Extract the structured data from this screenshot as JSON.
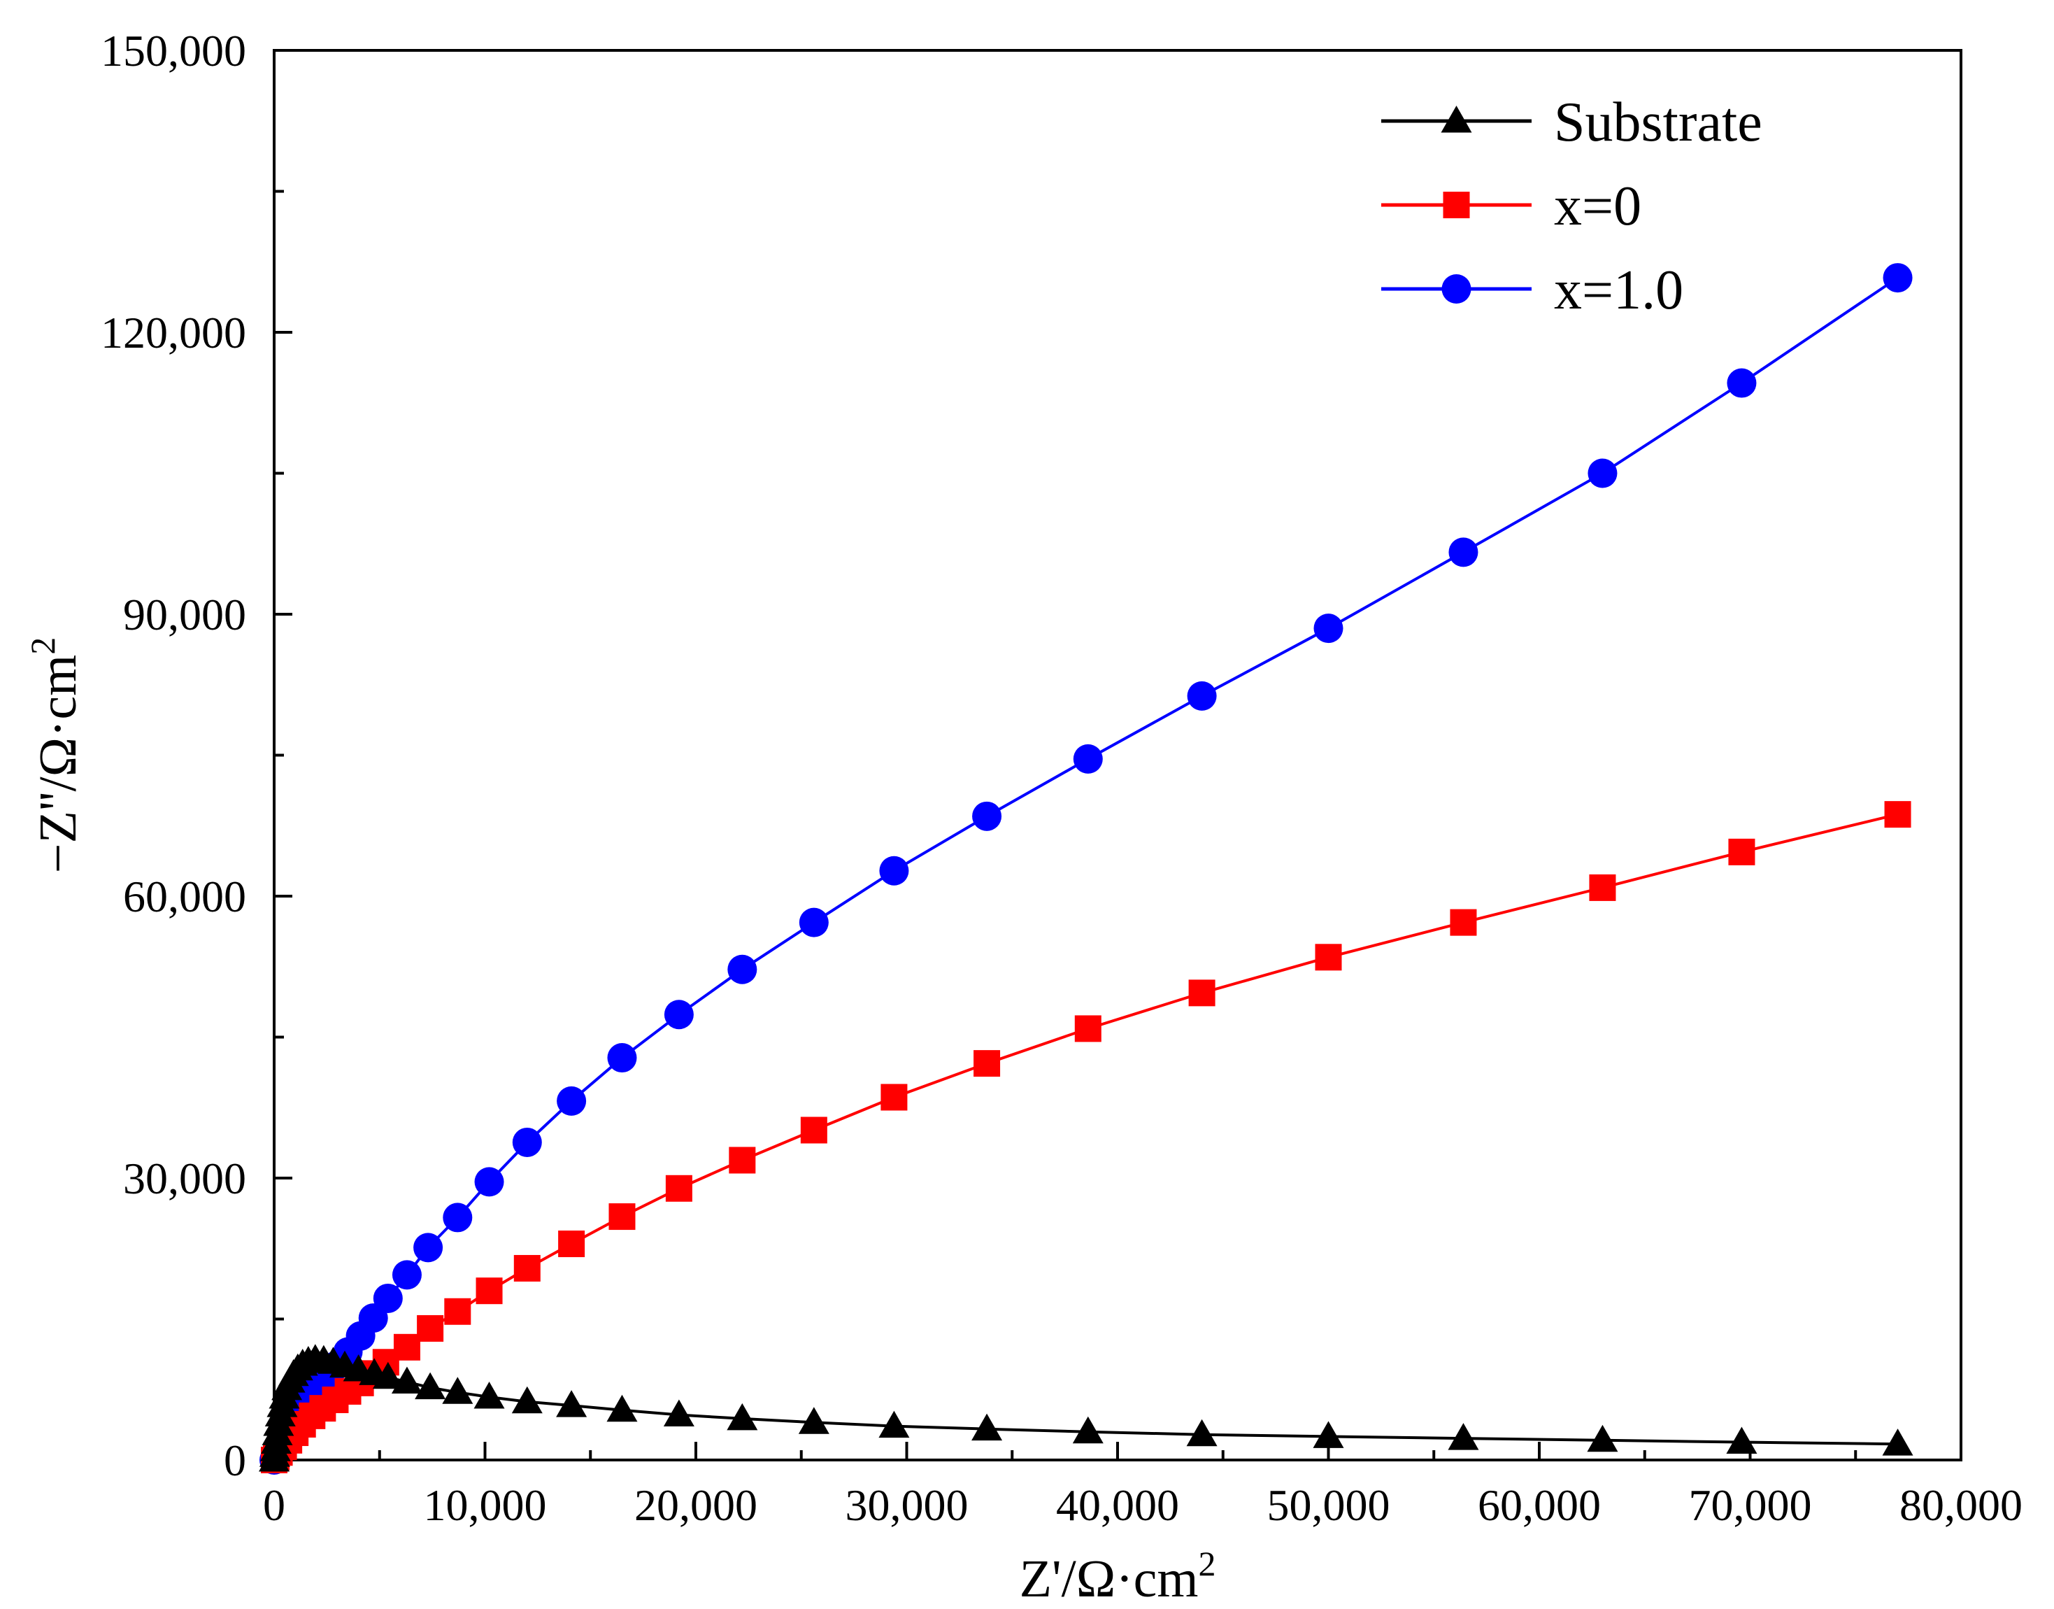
{
  "chart_data": {
    "type": "line",
    "title": "",
    "xlabel": "Z'/Ω·cm",
    "xlabel_sup": "2",
    "ylabel": "−Z''/Ω·cm",
    "ylabel_sup": "2",
    "xlim": [
      0,
      80000
    ],
    "ylim": [
      0,
      150000
    ],
    "xticks": [
      0,
      10000,
      20000,
      30000,
      40000,
      50000,
      60000,
      70000,
      80000
    ],
    "xtick_labels": [
      "0",
      "10,000",
      "20,000",
      "30,000",
      "40,000",
      "50,000",
      "60,000",
      "70,000",
      "80,000"
    ],
    "yticks": [
      0,
      30000,
      60000,
      90000,
      120000,
      150000
    ],
    "ytick_labels": [
      "0",
      "30,000",
      "60,000",
      "90,000",
      "120,000",
      "150,000"
    ],
    "grid": false,
    "legend_position": "top-right",
    "series": [
      {
        "name": "Substrate",
        "color": "#000000",
        "marker": "triangle",
        "x": [
          0,
          30,
          60,
          100,
          150,
          210,
          290,
          380,
          480,
          600,
          750,
          920,
          1120,
          1350,
          1620,
          1950,
          2350,
          2800,
          3350,
          4000,
          4750,
          5400,
          6300,
          7400,
          8700,
          10200,
          12000,
          14100,
          16500,
          19200,
          22200,
          25600,
          29400,
          33800,
          38600,
          44000,
          50000,
          56400,
          63000,
          69600,
          77000
        ],
        "y": [
          0,
          500,
          1100,
          1900,
          2800,
          3800,
          4800,
          5800,
          6700,
          7600,
          8400,
          9100,
          9700,
          10200,
          10500,
          10700,
          10600,
          10400,
          10000,
          9600,
          9200,
          8800,
          8300,
          7700,
          7200,
          6700,
          6200,
          5800,
          5300,
          4800,
          4400,
          4000,
          3600,
          3300,
          3000,
          2700,
          2500,
          2300,
          2100,
          1900,
          1700
        ]
      },
      {
        "name": "x=0",
        "color": "#ff0000",
        "marker": "square",
        "x": [
          0,
          100,
          250,
          450,
          700,
          1000,
          1350,
          1800,
          2300,
          2900,
          3500,
          4100,
          4700,
          5300,
          6300,
          7400,
          8700,
          10200,
          12000,
          14100,
          16500,
          19200,
          22200,
          25600,
          29400,
          33800,
          38600,
          44000,
          50000,
          56400,
          63000,
          69600,
          77000
        ],
        "y": [
          0,
          300,
          800,
          1400,
          2100,
          2900,
          3800,
          4700,
          5500,
          6400,
          7300,
          8200,
          9200,
          10400,
          12000,
          14000,
          15800,
          18000,
          20400,
          23000,
          25900,
          28900,
          31900,
          35100,
          38600,
          42200,
          45900,
          49700,
          53500,
          57200,
          60900,
          64700,
          68700
        ]
      },
      {
        "name": "x=1.0",
        "color": "#0000ff",
        "marker": "circle",
        "x": [
          0,
          100,
          250,
          450,
          700,
          1000,
          1350,
          1800,
          2300,
          2900,
          3500,
          4100,
          4700,
          5400,
          6300,
          7300,
          8700,
          10200,
          12000,
          14100,
          16500,
          19200,
          22200,
          25600,
          29400,
          33800,
          38600,
          44000,
          50000,
          56400,
          63000,
          69600,
          77000
        ],
        "y": [
          0,
          700,
          1600,
          2700,
          3800,
          5000,
          6200,
          7400,
          8700,
          10000,
          11500,
          13200,
          15100,
          17200,
          19700,
          22600,
          25800,
          29600,
          33800,
          38200,
          42800,
          47400,
          52200,
          57200,
          62700,
          68500,
          74600,
          81300,
          88500,
          96600,
          105000,
          114600,
          125800
        ]
      }
    ]
  }
}
